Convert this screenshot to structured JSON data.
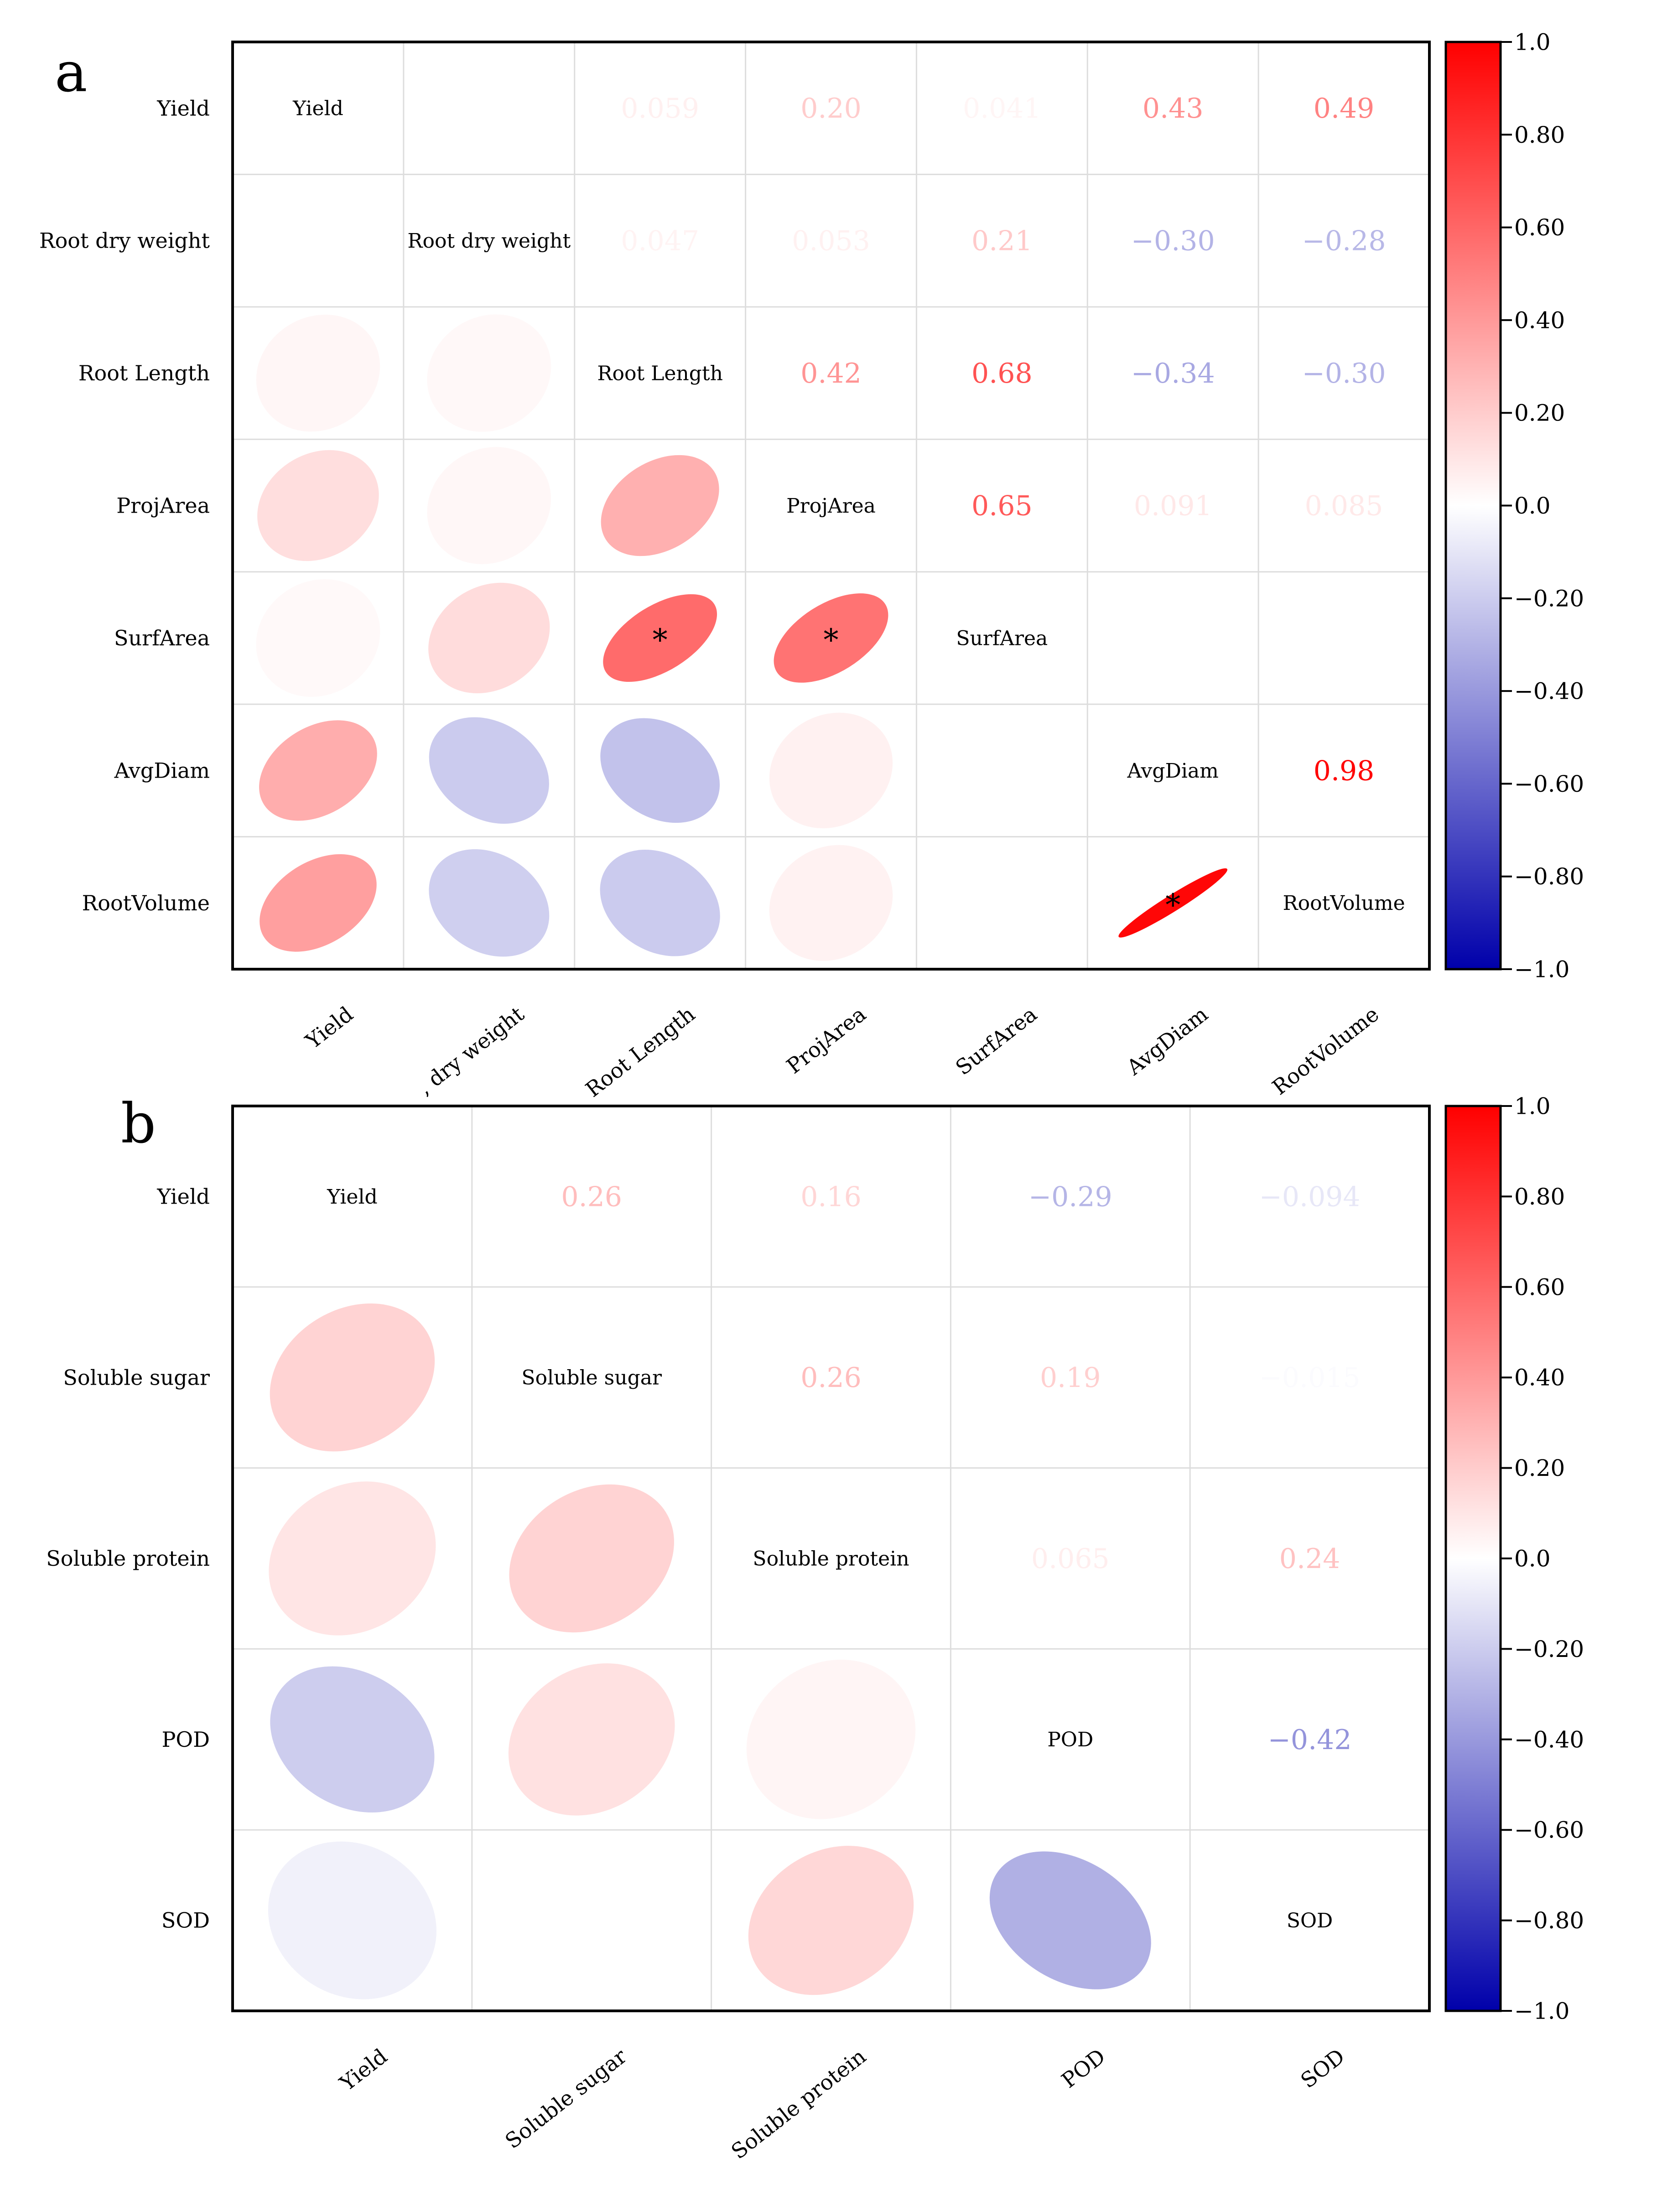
{
  "figure": {
    "panels": [
      {
        "id": "a",
        "panel_label": "a",
        "variables": [
          "Yield",
          "Root dry weight",
          "Root Length",
          "ProjArea",
          "SurfArea",
          "AvgDiam",
          "RootVolume"
        ],
        "x_tick_labels": [
          "Yield",
          ", dry weight",
          "Root Length",
          "ProjArea",
          "SurfArea",
          "AvgDiam",
          "RootVolume"
        ],
        "colorbar": {
          "min": -1.0,
          "max": 1.0,
          "tick_labels": [
            "1.0",
            "0.80",
            "0.60",
            "0.40",
            "0.20",
            "0.0",
            "−0.20",
            "−0.40",
            "−0.60",
            "−0.80",
            "−1.0"
          ]
        }
      },
      {
        "id": "b",
        "panel_label": "b",
        "variables": [
          "Yield",
          "Soluble sugar",
          "Soluble protein",
          "POD",
          "SOD"
        ],
        "x_tick_labels": [
          "Yield",
          "Soluble sugar",
          "Soluble protein",
          "POD",
          "SOD"
        ],
        "colorbar": {
          "min": -1.0,
          "max": 1.0,
          "tick_labels": [
            "1.0",
            "0.80",
            "0.60",
            "0.40",
            "0.20",
            "0.0",
            "−0.20",
            "−0.40",
            "−0.60",
            "−0.80",
            "−1.0"
          ]
        }
      }
    ],
    "colors": {
      "positive": "#ff0000",
      "negative": "#0000aa",
      "neutral": "#ffffff",
      "frame": "#000000",
      "grid": "#dddddd",
      "text": "#000000"
    }
  },
  "chart_data": [
    {
      "type": "heatmap",
      "subtype": "correlation-matrix",
      "panel": "a",
      "title": "",
      "variables": [
        "Yield",
        "Root dry weight",
        "Root Length",
        "ProjArea",
        "SurfArea",
        "AvgDiam",
        "RootVolume"
      ],
      "correlations": [
        {
          "row": "Yield",
          "col": "Root dry weight",
          "r": 0.0,
          "label": ""
        },
        {
          "row": "Yield",
          "col": "Root Length",
          "r": 0.059,
          "label": "0.059"
        },
        {
          "row": "Yield",
          "col": "ProjArea",
          "r": 0.2,
          "label": "0.20"
        },
        {
          "row": "Yield",
          "col": "SurfArea",
          "r": 0.041,
          "label": "0.041"
        },
        {
          "row": "Yield",
          "col": "AvgDiam",
          "r": 0.43,
          "label": "0.43"
        },
        {
          "row": "Yield",
          "col": "RootVolume",
          "r": 0.49,
          "label": "0.49"
        },
        {
          "row": "Root dry weight",
          "col": "Root Length",
          "r": 0.047,
          "label": "0.047"
        },
        {
          "row": "Root dry weight",
          "col": "ProjArea",
          "r": 0.053,
          "label": "0.053"
        },
        {
          "row": "Root dry weight",
          "col": "SurfArea",
          "r": 0.21,
          "label": "0.21"
        },
        {
          "row": "Root dry weight",
          "col": "AvgDiam",
          "r": -0.3,
          "label": "−0.30"
        },
        {
          "row": "Root dry weight",
          "col": "RootVolume",
          "r": -0.28,
          "label": "−0.28"
        },
        {
          "row": "Root Length",
          "col": "ProjArea",
          "r": 0.42,
          "label": "0.42"
        },
        {
          "row": "Root Length",
          "col": "SurfArea",
          "r": 0.68,
          "label": "0.68",
          "significant": true
        },
        {
          "row": "Root Length",
          "col": "AvgDiam",
          "r": -0.34,
          "label": "−0.34"
        },
        {
          "row": "Root Length",
          "col": "RootVolume",
          "r": -0.3,
          "label": "−0.30"
        },
        {
          "row": "ProjArea",
          "col": "SurfArea",
          "r": 0.65,
          "label": "0.65",
          "significant": true
        },
        {
          "row": "ProjArea",
          "col": "AvgDiam",
          "r": 0.091,
          "label": "0.091"
        },
        {
          "row": "ProjArea",
          "col": "RootVolume",
          "r": 0.085,
          "label": "0.085"
        },
        {
          "row": "SurfArea",
          "col": "AvgDiam",
          "r": 0.0,
          "label": ""
        },
        {
          "row": "SurfArea",
          "col": "RootVolume",
          "r": 0.0,
          "label": ""
        },
        {
          "row": "AvgDiam",
          "col": "RootVolume",
          "r": 0.98,
          "label": "0.98",
          "significant": true
        }
      ],
      "significance_marker": "*",
      "color_range": [
        -1.0,
        1.0
      ]
    },
    {
      "type": "heatmap",
      "subtype": "correlation-matrix",
      "panel": "b",
      "title": "",
      "variables": [
        "Yield",
        "Soluble sugar",
        "Soluble protein",
        "POD",
        "SOD"
      ],
      "correlations": [
        {
          "row": "Yield",
          "col": "Soluble sugar",
          "r": 0.26,
          "label": "0.26"
        },
        {
          "row": "Yield",
          "col": "Soluble protein",
          "r": 0.16,
          "label": "0.16"
        },
        {
          "row": "Yield",
          "col": "POD",
          "r": -0.29,
          "label": "−0.29"
        },
        {
          "row": "Yield",
          "col": "SOD",
          "r": -0.094,
          "label": "−0.094"
        },
        {
          "row": "Soluble sugar",
          "col": "Soluble protein",
          "r": 0.26,
          "label": "0.26"
        },
        {
          "row": "Soluble sugar",
          "col": "POD",
          "r": 0.19,
          "label": "0.19"
        },
        {
          "row": "Soluble sugar",
          "col": "SOD",
          "r": -0.015,
          "label": "−0.015"
        },
        {
          "row": "Soluble protein",
          "col": "POD",
          "r": 0.065,
          "label": "0.065"
        },
        {
          "row": "Soluble protein",
          "col": "SOD",
          "r": 0.24,
          "label": "0.24"
        },
        {
          "row": "POD",
          "col": "SOD",
          "r": -0.42,
          "label": "−0.42"
        }
      ],
      "significance_marker": "*",
      "color_range": [
        -1.0,
        1.0
      ]
    }
  ]
}
